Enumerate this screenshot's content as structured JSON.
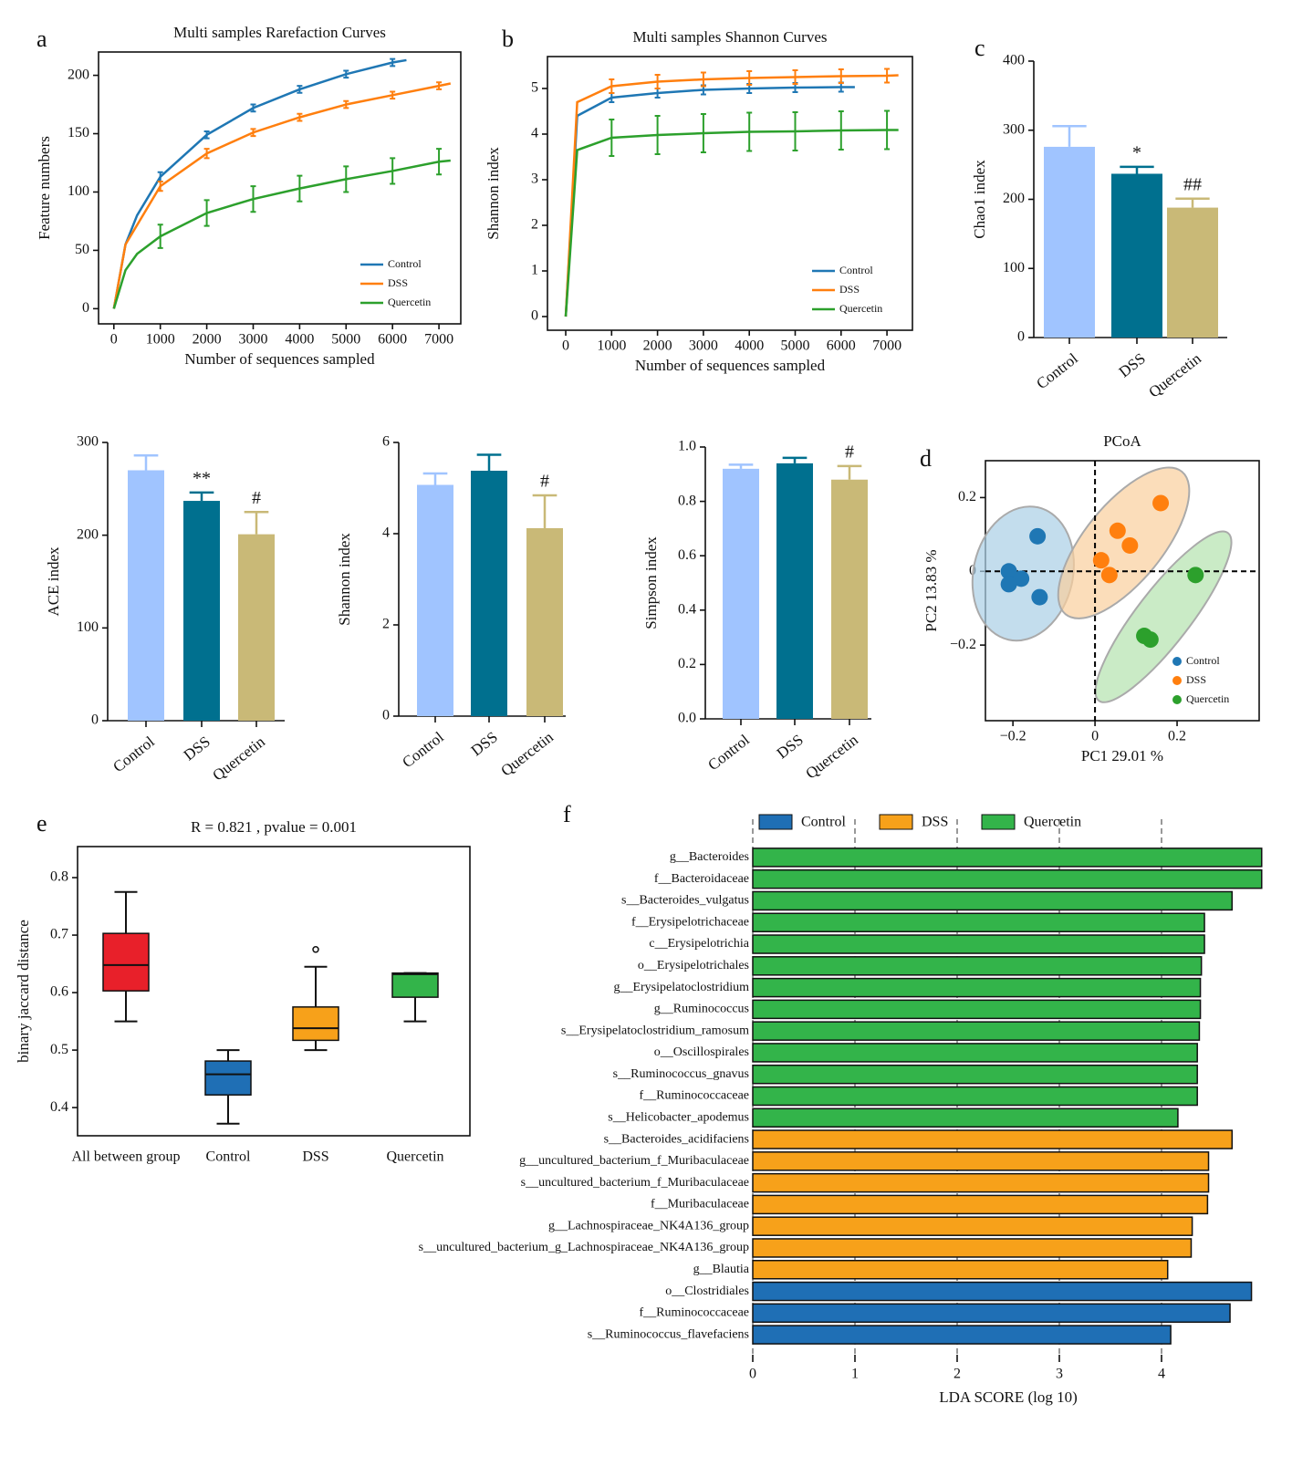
{
  "chart_data": [
    {
      "type": "line",
      "panel": "a",
      "title": "Multi samples Rarefaction Curves",
      "xlabel": "Number of sequences sampled",
      "ylabel": "Feature numbers",
      "legend": "lower right",
      "xlim": [
        -330,
        7470
      ],
      "xticks": [
        0,
        1000,
        2000,
        3000,
        4000,
        5000,
        6000,
        7000
      ],
      "ylim": [
        -13,
        220
      ],
      "yticks": [
        0,
        50,
        100,
        150,
        200
      ],
      "series": [
        {
          "name": "Control",
          "color": "#1f77b4",
          "x": [
            0,
            250,
            500,
            1000,
            2000,
            3000,
            4000,
            5000,
            6000,
            6300
          ],
          "values": [
            0,
            55,
            80,
            113,
            149,
            172,
            188,
            201,
            211,
            213
          ],
          "errors": [
            null,
            null,
            null,
            4,
            3,
            3,
            3,
            3,
            3,
            null
          ]
        },
        {
          "name": "DSS",
          "color": "#ff7f0e",
          "x": [
            0,
            250,
            1000,
            2000,
            3000,
            4000,
            5000,
            6000,
            7000,
            7250
          ],
          "values": [
            0,
            55,
            105,
            133,
            151,
            164,
            175,
            183,
            191,
            193
          ],
          "errors": [
            null,
            null,
            4,
            4,
            3,
            3,
            3,
            3,
            3,
            null
          ]
        },
        {
          "name": "Quercetin",
          "color": "#2ca02c",
          "x": [
            0,
            250,
            500,
            1000,
            2000,
            3000,
            4000,
            5000,
            6000,
            7000,
            7250
          ],
          "values": [
            0,
            33,
            47,
            62,
            82,
            94,
            103,
            111,
            118,
            126,
            127
          ],
          "errors": [
            null,
            null,
            null,
            10,
            11,
            11,
            11,
            11,
            11,
            11,
            null
          ]
        }
      ]
    },
    {
      "type": "line",
      "panel": "b",
      "title": "Multi samples Shannon Curves",
      "xlabel": "Number of sequences sampled",
      "ylabel": "Shannon index",
      "legend": "lower right",
      "xlim": [
        -398,
        7555
      ],
      "xticks": [
        0,
        1000,
        2000,
        3000,
        4000,
        5000,
        6000,
        7000
      ],
      "ylim": [
        -0.3,
        5.7
      ],
      "yticks": [
        0,
        1,
        2,
        3,
        4,
        5
      ],
      "series": [
        {
          "name": "Control",
          "color": "#1f77b4",
          "x": [
            0,
            250,
            1000,
            2000,
            3000,
            4000,
            5000,
            6000,
            6300
          ],
          "values": [
            0,
            4.4,
            4.8,
            4.9,
            4.97,
            5.0,
            5.02,
            5.03,
            5.03
          ],
          "errors": [
            null,
            null,
            0.1,
            0.1,
            0.1,
            0.1,
            0.1,
            0.1,
            null
          ]
        },
        {
          "name": "DSS",
          "color": "#ff7f0e",
          "x": [
            0,
            250,
            1000,
            2000,
            3000,
            4000,
            5000,
            6000,
            7000,
            7250
          ],
          "values": [
            0,
            4.7,
            5.05,
            5.15,
            5.2,
            5.23,
            5.25,
            5.27,
            5.28,
            5.29
          ],
          "errors": [
            null,
            null,
            0.15,
            0.15,
            0.15,
            0.15,
            0.15,
            0.15,
            0.15,
            null
          ]
        },
        {
          "name": "Quercetin",
          "color": "#2ca02c",
          "x": [
            0,
            250,
            1000,
            2000,
            3000,
            4000,
            5000,
            6000,
            7000,
            7250
          ],
          "values": [
            0,
            3.65,
            3.92,
            3.98,
            4.02,
            4.05,
            4.06,
            4.08,
            4.09,
            4.09
          ],
          "errors": [
            null,
            null,
            0.4,
            0.42,
            0.42,
            0.42,
            0.42,
            0.42,
            0.42,
            null
          ]
        }
      ]
    },
    {
      "type": "bar",
      "panel": "c",
      "ylabel": "Chao1 index",
      "ylim": [
        0,
        400
      ],
      "yticks": [
        0,
        100,
        200,
        300,
        400
      ],
      "categories": [
        "Control",
        "DSS",
        "Quercetin"
      ],
      "values": [
        276,
        237,
        188
      ],
      "errors": [
        30,
        10,
        13
      ],
      "annotations": [
        null,
        "*",
        "##"
      ],
      "colors": [
        "#a0c4ff",
        "#00708f",
        "#c9b977"
      ]
    },
    {
      "type": "bar",
      "ylabel": "ACE index",
      "ylim": [
        0,
        300
      ],
      "yticks": [
        0,
        100,
        200,
        300
      ],
      "categories": [
        "Control",
        "DSS",
        "Quercetin"
      ],
      "values": [
        270,
        237,
        201
      ],
      "errors": [
        16,
        9,
        24
      ],
      "annotations": [
        null,
        "**",
        "#"
      ],
      "colors": [
        "#a0c4ff",
        "#00708f",
        "#c9b977"
      ]
    },
    {
      "type": "bar",
      "ylabel": "Shannon index",
      "ylim": [
        0,
        6
      ],
      "yticks": [
        0,
        2,
        4,
        6
      ],
      "categories": [
        "Control",
        "DSS",
        "Quercetin"
      ],
      "values": [
        5.07,
        5.38,
        4.12
      ],
      "errors": [
        0.25,
        0.35,
        0.72
      ],
      "annotations": [
        null,
        null,
        "#"
      ],
      "colors": [
        "#a0c4ff",
        "#00708f",
        "#c9b977"
      ]
    },
    {
      "type": "bar",
      "ylabel": "Simpson index",
      "ylim": [
        0,
        1
      ],
      "yticks": [
        {
          "value": 0,
          "label": "0.0"
        },
        0.2,
        0.4,
        0.6,
        0.8,
        {
          "value": 1,
          "label": "1.0"
        }
      ],
      "categories": [
        "Control",
        "DSS",
        "Quercetin"
      ],
      "values": [
        0.92,
        0.94,
        0.88
      ],
      "errors": [
        0.015,
        0.02,
        0.05
      ],
      "annotations": [
        null,
        null,
        "#"
      ],
      "colors": [
        "#a0c4ff",
        "#00708f",
        "#c9b977"
      ]
    },
    {
      "type": "scatter",
      "panel": "d",
      "title": "PCoA",
      "xlabel": "PC1 29.01 %",
      "ylabel": "PC2 13.83 %",
      "legend": "lower right",
      "xlim": [
        -0.267,
        0.4
      ],
      "xticks": [
        {
          "value": -0.2,
          "label": "−0.2"
        },
        0,
        0.2
      ],
      "ylim": [
        -0.405,
        0.3
      ],
      "yticks": [
        {
          "value": -0.2,
          "label": "−0.2"
        },
        0,
        0.2
      ],
      "series": [
        {
          "name": "Control",
          "color": "#1f77b4",
          "ellipse": "#a9cfe6",
          "x": [
            -0.14,
            -0.21,
            -0.18,
            -0.21,
            -0.135
          ],
          "values": [
            0.095,
            0.0,
            -0.02,
            -0.035,
            -0.07
          ]
        },
        {
          "name": "DSS",
          "color": "#ff7f0e",
          "ellipse": "#f9cf9c",
          "x": [
            0.16,
            0.055,
            0.085,
            0.015,
            0.035
          ],
          "values": [
            0.185,
            0.11,
            0.07,
            0.03,
            -0.01
          ]
        },
        {
          "name": "Quercetin",
          "color": "#2ca02c",
          "ellipse": "#b3e3ae",
          "x": [
            0.245,
            0.12,
            0.135
          ],
          "values": [
            -0.01,
            -0.175,
            -0.185
          ]
        }
      ]
    },
    {
      "type": "box",
      "panel": "e",
      "title": "R = 0.821 , pvalue = 0.001",
      "ylabel": "binary jaccard distance",
      "ylim": [
        0.351,
        0.854
      ],
      "yticks": [
        0.4,
        0.5,
        0.6,
        0.7,
        0.8
      ],
      "categories": [
        "All between group",
        "Control",
        "DSS",
        "Quercetin"
      ],
      "colors": [
        "#e8202a",
        "#1f6fb5",
        "#f7a11a",
        "#33b44a"
      ],
      "boxes": [
        {
          "whislo": 0.55,
          "q1": 0.603,
          "med": 0.648,
          "q3": 0.703,
          "whishi": 0.775,
          "fliers": []
        },
        {
          "whislo": 0.372,
          "q1": 0.422,
          "med": 0.458,
          "q3": 0.481,
          "whishi": 0.5,
          "fliers": []
        },
        {
          "whislo": 0.5,
          "q1": 0.517,
          "med": 0.538,
          "q3": 0.575,
          "whishi": 0.645,
          "fliers": [
            0.675
          ]
        },
        {
          "whislo": 0.55,
          "q1": 0.592,
          "med": 0.632,
          "q3": 0.634,
          "whishi": 0.634,
          "fliers": []
        }
      ]
    },
    {
      "type": "barh",
      "panel": "f",
      "xlabel": "LDA SCORE (log 10)",
      "xlim": [
        0,
        5
      ],
      "xticks": [
        0,
        1,
        2,
        3,
        4
      ],
      "grid": true,
      "legend": "top",
      "series": [
        {
          "name": "Quercetin",
          "color": "#33b44a",
          "categories": [
            "g__Bacteroides",
            "f__Bacteroidaceae",
            "s__Bacteroides_vulgatus",
            "f__Erysipelotrichaceae",
            "c__Erysipelotrichia",
            "o__Erysipelotrichales",
            "g__Erysipelatoclostridium",
            "g__Ruminococcus",
            "s__Erysipelatoclostridium_ramosum",
            "o__Oscillospirales",
            "s__Ruminococcus_gnavus",
            "f__Ruminococcaceae",
            "s__Helicobacter_apodemus"
          ],
          "values": [
            4.98,
            4.98,
            4.69,
            4.42,
            4.42,
            4.39,
            4.38,
            4.38,
            4.37,
            4.35,
            4.35,
            4.35,
            4.16
          ]
        },
        {
          "name": "DSS",
          "color": "#f7a11a",
          "categories": [
            "s__Bacteroides_acidifaciens",
            "g__uncultured_bacterium_f_Muribaculaceae",
            "s__uncultured_bacterium_f_Muribaculaceae",
            "f__Muribaculaceae",
            "g__Lachnospiraceae_NK4A136_group",
            "s__uncultured_bacterium_g_Lachnospiraceae_NK4A136_group",
            "g__Blautia"
          ],
          "values": [
            4.69,
            4.46,
            4.46,
            4.45,
            4.3,
            4.29,
            4.06
          ]
        },
        {
          "name": "Control",
          "color": "#1f6fb5",
          "categories": [
            "o__Clostridiales",
            "f__Ruminococcaceae",
            "s__Ruminococcus_flavefaciens"
          ],
          "values": [
            4.88,
            4.67,
            4.09
          ]
        }
      ]
    }
  ]
}
